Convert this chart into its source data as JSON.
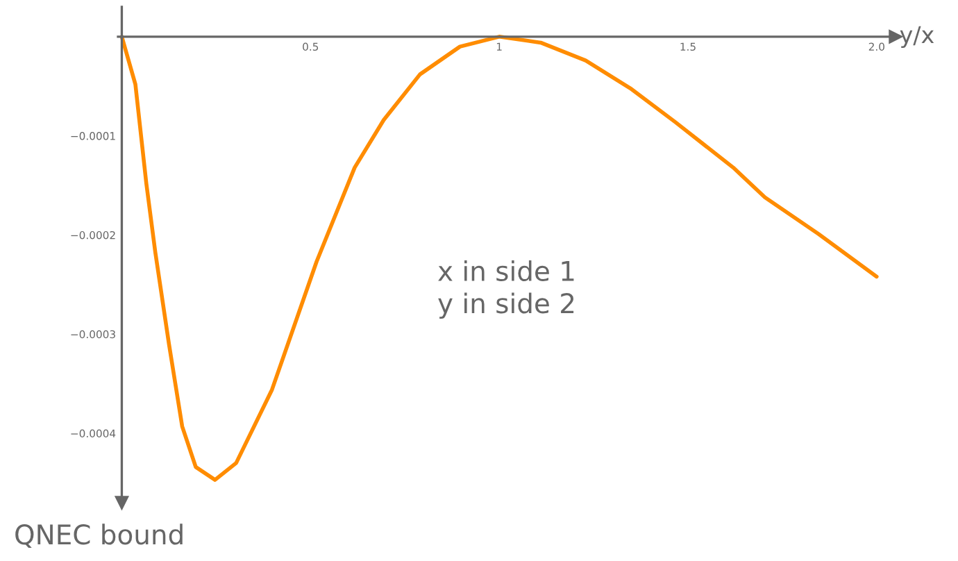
{
  "chart_data": {
    "type": "line",
    "xlabel": "y/x",
    "ylabel": "QNEC bound",
    "annotations": [
      "x in side 1\ny in side 2"
    ],
    "x": [
      0,
      0.036,
      0.065,
      0.089,
      0.125,
      0.16,
      0.196,
      0.247,
      0.303,
      0.398,
      0.516,
      0.617,
      0.694,
      0.79,
      0.896,
      1,
      1.11,
      1.229,
      1.347,
      1.466,
      1.62,
      1.704,
      1.846,
      2.0
    ],
    "series": [
      {
        "color": "#ff8c00",
        "values": [
          0,
          -4.8e-05,
          -0.000148,
          -0.000218,
          -0.00031,
          -0.000393,
          -0.000434,
          -0.000447,
          -0.00043,
          -0.000356,
          -0.000227,
          -0.000132,
          -8.4e-05,
          -3.8e-05,
          -1e-05,
          0,
          -6e-06,
          -2.4e-05,
          -5.2e-05,
          -8.6e-05,
          -0.000132,
          -0.000162,
          -0.000199,
          -0.000242
        ]
      }
    ],
    "xlim": [
      -0.01,
      2.05
    ],
    "ylim": [
      -0.00047,
      3e-05
    ],
    "xticks": [
      0.5,
      1,
      1.5,
      {
        "value": 2,
        "label": "2.0"
      }
    ],
    "yticks": [
      {
        "value": -0.0001,
        "label": "−0.0001"
      },
      {
        "value": -0.0002,
        "label": "−0.0002"
      },
      {
        "value": -0.0003,
        "label": "−0.0003"
      },
      {
        "value": -0.0004,
        "label": "−0.0004"
      }
    ],
    "grid": false,
    "legend": false,
    "marker": "none",
    "line_style": "solid"
  }
}
